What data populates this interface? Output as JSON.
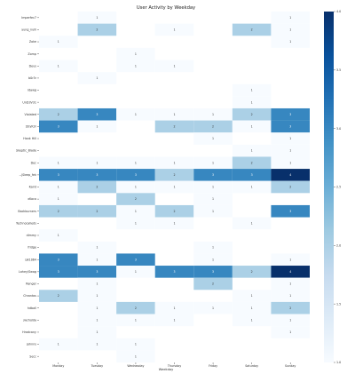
{
  "chart_data": {
    "type": "heatmap",
    "title": "User Activity by Weekday",
    "xlabel": "Weekday",
    "ylabel": "",
    "columns": [
      "Monday",
      "Tuesday",
      "Wednesday",
      "Thursday",
      "Friday",
      "Saturday",
      "Sunday"
    ],
    "rows": [
      "Imperfec7",
      "yung_nulli",
      "Zoke",
      "Zomp",
      "Deus",
      "b0r3r",
      "rdawg",
      "UnD3V31",
      "Violated",
      "StryK3r",
      "Hank Hill",
      "Skeptic_Blade",
      "Dec",
      "--|Sleep_fek",
      "Kaint",
      "xKoco",
      "Backburners",
      "Technocalleds",
      "dimmy",
      "fridge",
      "sjk1064",
      "Lahey/Swag",
      "Ranger",
      "Chrontos",
      "hdball",
      "jwcholda",
      "Hradcany",
      "johnns",
      "Secc"
    ],
    "values": [
      [
        0,
        1,
        0,
        0,
        0,
        0,
        1
      ],
      [
        0,
        2,
        0,
        1,
        0,
        2,
        1
      ],
      [
        1,
        0,
        0,
        0,
        0,
        0,
        1
      ],
      [
        0,
        0,
        1,
        0,
        0,
        0,
        0
      ],
      [
        1,
        0,
        1,
        1,
        0,
        0,
        0
      ],
      [
        0,
        1,
        0,
        0,
        0,
        0,
        0
      ],
      [
        0,
        0,
        0,
        0,
        0,
        1,
        0
      ],
      [
        0,
        0,
        0,
        0,
        0,
        1,
        0
      ],
      [
        2,
        3,
        1,
        1,
        1,
        2,
        3
      ],
      [
        3,
        1,
        0,
        2,
        2,
        1,
        3
      ],
      [
        0,
        0,
        0,
        0,
        1,
        0,
        1
      ],
      [
        0,
        0,
        0,
        0,
        0,
        1,
        1
      ],
      [
        1,
        1,
        1,
        1,
        1,
        2,
        1
      ],
      [
        3,
        3,
        3,
        2,
        3,
        3,
        4
      ],
      [
        1,
        2,
        1,
        1,
        1,
        1,
        2
      ],
      [
        1,
        0,
        2,
        0,
        1,
        0,
        0
      ],
      [
        2,
        2,
        1,
        2,
        1,
        0,
        3
      ],
      [
        0,
        0,
        1,
        1,
        0,
        1,
        0
      ],
      [
        1,
        0,
        0,
        0,
        0,
        0,
        0
      ],
      [
        0,
        1,
        0,
        0,
        1,
        0,
        0
      ],
      [
        3,
        1,
        3,
        0,
        1,
        0,
        1
      ],
      [
        3,
        3,
        1,
        3,
        3,
        2,
        4
      ],
      [
        0,
        1,
        0,
        0,
        2,
        0,
        1
      ],
      [
        2,
        1,
        0,
        0,
        0,
        1,
        1
      ],
      [
        0,
        1,
        2,
        1,
        1,
        1,
        2
      ],
      [
        0,
        1,
        1,
        1,
        0,
        1,
        1
      ],
      [
        0,
        1,
        0,
        0,
        0,
        0,
        1
      ],
      [
        1,
        1,
        1,
        0,
        0,
        0,
        0
      ],
      [
        0,
        0,
        1,
        0,
        0,
        0,
        0
      ]
    ],
    "vmin": 1,
    "vmax": 4,
    "colorbar_ticks": [
      1.0,
      1.5,
      2.0,
      2.5,
      3.0,
      3.5,
      4.0
    ],
    "colormap": "Blues",
    "colors": {
      "low": "#f7fbff",
      "high": "#08306b"
    },
    "grid": false
  }
}
